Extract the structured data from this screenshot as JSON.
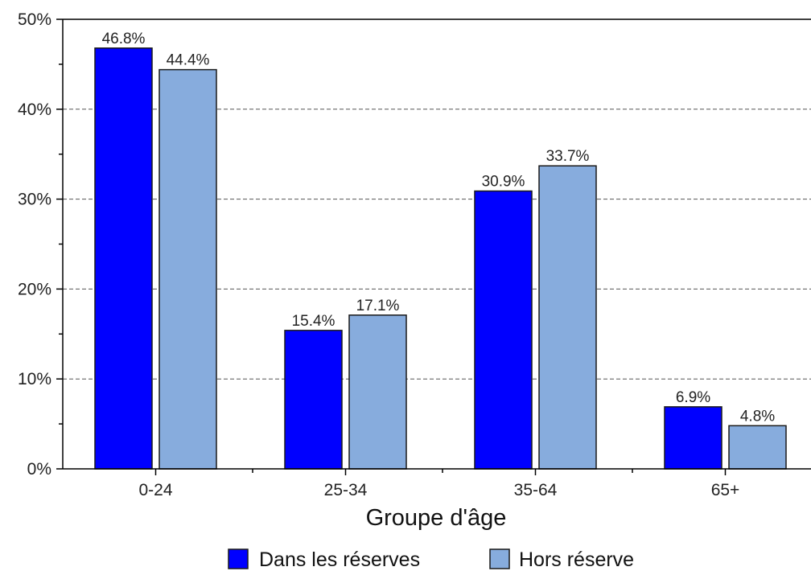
{
  "chart_data": {
    "type": "bar",
    "title": "",
    "xlabel": "Groupe d'âge",
    "ylabel": "",
    "categories": [
      "0-24",
      "25-34",
      "35-64",
      "65+"
    ],
    "series": [
      {
        "name": "Dans les réserves",
        "values": [
          46.8,
          15.4,
          30.9,
          6.9
        ],
        "labels": [
          "46.8%",
          "15.4%",
          "30.9%",
          "6.9%"
        ],
        "color": "#0000ff"
      },
      {
        "name": "Hors réserve",
        "values": [
          44.4,
          17.1,
          33.7,
          4.8
        ],
        "labels": [
          "44.4%",
          "17.1%",
          "33.7%",
          "4.8%"
        ],
        "color": "#87acdd"
      }
    ],
    "ylim": [
      0,
      50
    ],
    "yticks": [
      0,
      10,
      20,
      30,
      40,
      50
    ],
    "ytick_labels": [
      "0%",
      "10%",
      "20%",
      "30%",
      "40%",
      "50%"
    ],
    "grid": true,
    "legend_position": "bottom"
  }
}
